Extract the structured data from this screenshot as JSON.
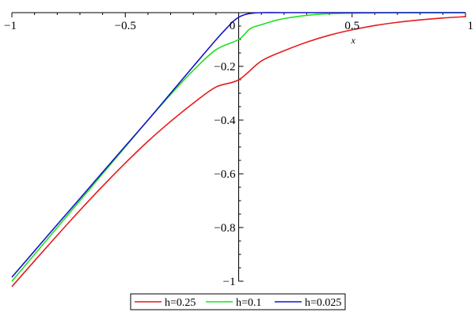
{
  "chart_data": {
    "type": "line",
    "title": "",
    "xlabel": "x",
    "ylabel": "",
    "xlim": [
      -1,
      1
    ],
    "ylim": [
      -1,
      0
    ],
    "grid": false,
    "legend_position": "bottom",
    "x_ticks": [
      {
        "value": -1,
        "label": "−1"
      },
      {
        "value": -0.5,
        "label": "−0.5"
      },
      {
        "value": 0,
        "label": "0"
      },
      {
        "value": 0.5,
        "label": "0.5"
      },
      {
        "value": 1,
        "label": "1"
      }
    ],
    "y_ticks": [
      {
        "value": -0.2,
        "label": "−0.2"
      },
      {
        "value": -0.4,
        "label": "−0.4"
      },
      {
        "value": -0.6,
        "label": "−0.6"
      },
      {
        "value": -0.8,
        "label": "−0.8"
      },
      {
        "value": -1,
        "label": "−1"
      }
    ],
    "series": [
      {
        "name": "h=0.25",
        "color": "#e8191c",
        "x": [
          -1.0,
          -0.9,
          -0.8,
          -0.7,
          -0.6,
          -0.5,
          -0.4,
          -0.3,
          -0.2,
          -0.1,
          0.0,
          0.1,
          0.2,
          0.3,
          0.4,
          0.5,
          0.6,
          0.7,
          0.8,
          0.9,
          1.0
        ],
        "y": [
          -1.02,
          -0.924,
          -0.829,
          -0.736,
          -0.646,
          -0.56,
          -0.479,
          -0.405,
          -0.337,
          -0.277,
          -0.25,
          -0.18,
          -0.142,
          -0.11,
          -0.084,
          -0.064,
          -0.048,
          -0.036,
          -0.027,
          -0.02,
          -0.015
        ]
      },
      {
        "name": "h=0.1",
        "color": "#1fe01f",
        "x": [
          -1.0,
          -0.9,
          -0.8,
          -0.7,
          -0.6,
          -0.5,
          -0.4,
          -0.3,
          -0.2,
          -0.1,
          0.0,
          0.05,
          0.1,
          0.15,
          0.2,
          0.3,
          0.4,
          0.5,
          0.7,
          1.0
        ],
        "y": [
          -1.0,
          -0.9,
          -0.8,
          -0.7,
          -0.6,
          -0.5,
          -0.4,
          -0.305,
          -0.215,
          -0.138,
          -0.1,
          -0.06,
          -0.045,
          -0.032,
          -0.022,
          -0.01,
          -0.004,
          -0.002,
          0.0,
          0.0
        ]
      },
      {
        "name": "h=0.025",
        "color": "#1515c8",
        "x": [
          -1.0,
          -0.9,
          -0.8,
          -0.7,
          -0.6,
          -0.5,
          -0.4,
          -0.3,
          -0.2,
          -0.1,
          -0.05,
          -0.025,
          0.0,
          0.025,
          0.05,
          0.1,
          0.2,
          0.5,
          1.0
        ],
        "y": [
          -0.985,
          -0.887,
          -0.789,
          -0.692,
          -0.594,
          -0.497,
          -0.4,
          -0.3,
          -0.2,
          -0.101,
          -0.055,
          -0.033,
          -0.017,
          -0.008,
          -0.003,
          0.0,
          0.0,
          0.0,
          0.0
        ]
      }
    ]
  }
}
